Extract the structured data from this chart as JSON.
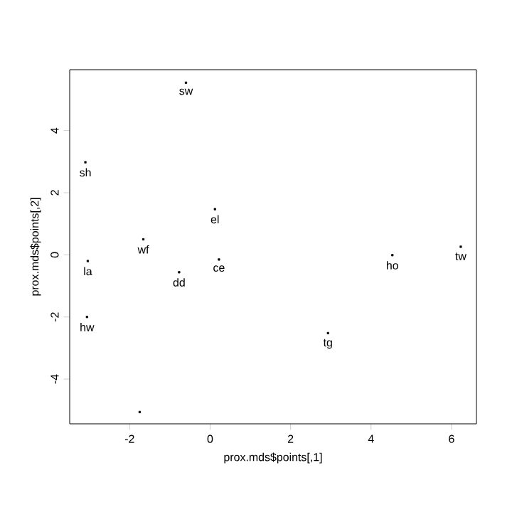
{
  "chart_data": {
    "type": "scatter",
    "xlabel": "prox.mds$points[,1]",
    "ylabel": "prox.mds$points[,2]",
    "x": [
      -0.6,
      -3.1,
      0.12,
      -1.66,
      -3.04,
      -0.77,
      0.22,
      -3.06,
      -1.75,
      4.53,
      6.23,
      2.93
    ],
    "values": [
      5.54,
      2.98,
      1.47,
      0.5,
      -0.2,
      -0.56,
      -0.15,
      -2.0,
      -5.06,
      -0.01,
      0.26,
      -2.52
    ],
    "color": "#000000",
    "marker": "square",
    "xlim": [
      -3.49,
      6.62
    ],
    "ylim": [
      -5.44,
      5.96
    ],
    "xticks": [
      -2,
      0,
      2,
      4,
      6
    ],
    "yticks": [
      -4,
      -2,
      0,
      2,
      4
    ],
    "annotations": [
      {
        "text": "sw",
        "x": -0.6,
        "y": 5.54
      },
      {
        "text": "sh",
        "x": -3.1,
        "y": 2.98
      },
      {
        "text": "el",
        "x": 0.12,
        "y": 1.47
      },
      {
        "text": "wf",
        "x": -1.66,
        "y": 0.5
      },
      {
        "text": "la",
        "x": -3.04,
        "y": -0.2
      },
      {
        "text": "dd",
        "x": -0.77,
        "y": -0.56
      },
      {
        "text": "ce",
        "x": 0.22,
        "y": -0.15
      },
      {
        "text": "hw",
        "x": -3.06,
        "y": -2.0
      },
      {
        "text": "ho",
        "x": 4.53,
        "y": -0.01
      },
      {
        "text": "tw",
        "x": 6.23,
        "y": 0.26
      },
      {
        "text": "tg",
        "x": 2.93,
        "y": -2.52
      }
    ]
  }
}
